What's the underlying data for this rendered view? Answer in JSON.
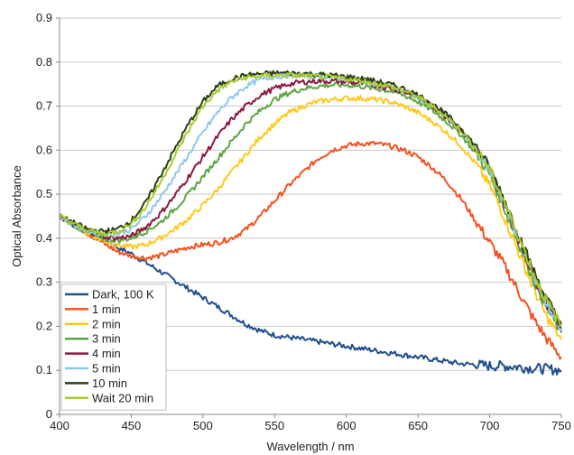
{
  "chart_data": {
    "type": "line",
    "xlabel": "Wavelength / nm",
    "ylabel": "Optical Absorbance",
    "xlim": [
      400,
      750
    ],
    "ylim": [
      0,
      0.9
    ],
    "x_ticks": [
      "400",
      "450",
      "500",
      "550",
      "600",
      "650",
      "700",
      "750"
    ],
    "y_ticks": [
      "0",
      "0.1",
      "0.2",
      "0.3",
      "0.4",
      "0.5",
      "0.6",
      "0.7",
      "0.8",
      "0.9"
    ],
    "grid": "horizontal",
    "legend_position": "bottom-left",
    "x": [
      400,
      410,
      420,
      430,
      440,
      450,
      460,
      470,
      480,
      490,
      500,
      510,
      520,
      530,
      540,
      550,
      560,
      570,
      580,
      590,
      600,
      610,
      620,
      630,
      640,
      650,
      660,
      670,
      680,
      690,
      700,
      710,
      720,
      730,
      740,
      750
    ],
    "series": [
      {
        "name": "Dark, 100 K",
        "color": "#1f4e8c",
        "values": [
          0.45,
          0.43,
          0.415,
          0.4,
          0.38,
          0.365,
          0.345,
          0.325,
          0.305,
          0.285,
          0.265,
          0.245,
          0.225,
          0.205,
          0.19,
          0.18,
          0.175,
          0.17,
          0.165,
          0.16,
          0.155,
          0.15,
          0.145,
          0.14,
          0.135,
          0.13,
          0.125,
          0.12,
          0.115,
          0.113,
          0.11,
          0.11,
          0.108,
          0.105,
          0.103,
          0.1
        ]
      },
      {
        "name": "1 min",
        "color": "#f4511e",
        "values": [
          0.45,
          0.43,
          0.41,
          0.39,
          0.37,
          0.36,
          0.355,
          0.36,
          0.37,
          0.38,
          0.385,
          0.39,
          0.4,
          0.42,
          0.45,
          0.485,
          0.52,
          0.55,
          0.58,
          0.6,
          0.61,
          0.615,
          0.615,
          0.61,
          0.6,
          0.585,
          0.56,
          0.53,
          0.49,
          0.44,
          0.39,
          0.34,
          0.28,
          0.22,
          0.17,
          0.13
        ]
      },
      {
        "name": "2 min",
        "color": "#ffc91c",
        "values": [
          0.45,
          0.43,
          0.41,
          0.395,
          0.385,
          0.38,
          0.385,
          0.4,
          0.42,
          0.445,
          0.475,
          0.51,
          0.55,
          0.59,
          0.63,
          0.66,
          0.685,
          0.7,
          0.71,
          0.715,
          0.718,
          0.718,
          0.715,
          0.71,
          0.7,
          0.685,
          0.665,
          0.64,
          0.61,
          0.57,
          0.52,
          0.45,
          0.37,
          0.29,
          0.22,
          0.17
        ]
      },
      {
        "name": "3 min",
        "color": "#5ca544",
        "values": [
          0.45,
          0.43,
          0.41,
          0.4,
          0.395,
          0.4,
          0.415,
          0.435,
          0.465,
          0.5,
          0.54,
          0.58,
          0.62,
          0.66,
          0.69,
          0.715,
          0.73,
          0.74,
          0.745,
          0.748,
          0.748,
          0.745,
          0.74,
          0.735,
          0.725,
          0.71,
          0.69,
          0.665,
          0.635,
          0.595,
          0.545,
          0.47,
          0.39,
          0.31,
          0.24,
          0.185
        ]
      },
      {
        "name": "4 min",
        "color": "#8b1a3a",
        "values": [
          0.45,
          0.43,
          0.415,
          0.405,
          0.4,
          0.405,
          0.425,
          0.455,
          0.495,
          0.54,
          0.585,
          0.63,
          0.67,
          0.7,
          0.725,
          0.74,
          0.75,
          0.755,
          0.757,
          0.757,
          0.755,
          0.752,
          0.748,
          0.742,
          0.733,
          0.72,
          0.7,
          0.675,
          0.645,
          0.605,
          0.555,
          0.48,
          0.4,
          0.32,
          0.25,
          0.195
        ]
      },
      {
        "name": "5 min",
        "color": "#8ec8ef",
        "values": [
          0.45,
          0.43,
          0.415,
          0.41,
          0.41,
          0.42,
          0.45,
          0.49,
          0.54,
          0.59,
          0.64,
          0.685,
          0.72,
          0.745,
          0.76,
          0.767,
          0.77,
          0.77,
          0.768,
          0.765,
          0.762,
          0.758,
          0.752,
          0.745,
          0.735,
          0.72,
          0.7,
          0.675,
          0.645,
          0.605,
          0.555,
          0.48,
          0.4,
          0.32,
          0.25,
          0.195
        ]
      },
      {
        "name": "10 min",
        "color": "#2b3d15",
        "values": [
          0.45,
          0.435,
          0.42,
          0.415,
          0.42,
          0.44,
          0.48,
          0.54,
          0.6,
          0.66,
          0.71,
          0.745,
          0.762,
          0.77,
          0.773,
          0.775,
          0.775,
          0.774,
          0.772,
          0.77,
          0.767,
          0.763,
          0.757,
          0.75,
          0.74,
          0.725,
          0.705,
          0.68,
          0.65,
          0.61,
          0.56,
          0.49,
          0.41,
          0.33,
          0.26,
          0.205
        ]
      },
      {
        "name": "Wait 20 min",
        "color": "#a6cc2b",
        "values": [
          0.45,
          0.433,
          0.418,
          0.41,
          0.415,
          0.432,
          0.47,
          0.525,
          0.585,
          0.645,
          0.7,
          0.735,
          0.755,
          0.765,
          0.768,
          0.77,
          0.77,
          0.769,
          0.767,
          0.765,
          0.762,
          0.758,
          0.752,
          0.745,
          0.735,
          0.72,
          0.7,
          0.675,
          0.645,
          0.605,
          0.555,
          0.485,
          0.405,
          0.325,
          0.255,
          0.2
        ]
      }
    ]
  }
}
